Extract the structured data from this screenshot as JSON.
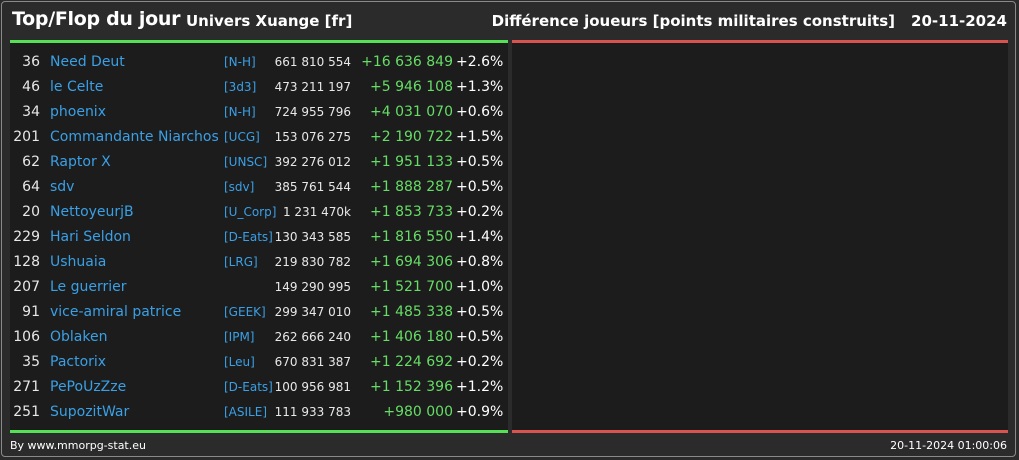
{
  "header": {
    "title": "Top/Flop du jour",
    "subtitle": "Univers Xuange [fr]",
    "metric": "Différence joueurs [points militaires construits]",
    "date": "20-11-2024"
  },
  "colors": {
    "top_accent": "#55e055",
    "flop_accent": "#d9534f",
    "link": "#3aa0e6",
    "gain": "#66dd66"
  },
  "top": [
    {
      "rank": "36",
      "name": "Need Deut",
      "alliance": "[N-H]",
      "points": "661 810 554",
      "diff": "+16 636 849",
      "pct": "+2.6%"
    },
    {
      "rank": "46",
      "name": "le Celte",
      "alliance": "[3d3]",
      "points": "473 211 197",
      "diff": "+5 946 108",
      "pct": "+1.3%"
    },
    {
      "rank": "34",
      "name": "phoenix",
      "alliance": "[N-H]",
      "points": "724 955 796",
      "diff": "+4 031 070",
      "pct": "+0.6%"
    },
    {
      "rank": "201",
      "name": "Commandante Niarchos",
      "alliance": "[UCG]",
      "points": "153 076 275",
      "diff": "+2 190 722",
      "pct": "+1.5%"
    },
    {
      "rank": "62",
      "name": "Raptor X",
      "alliance": "[UNSC]",
      "points": "392 276 012",
      "diff": "+1 951 133",
      "pct": "+0.5%"
    },
    {
      "rank": "64",
      "name": "sdv",
      "alliance": "[sdv]",
      "points": "385 761 544",
      "diff": "+1 888 287",
      "pct": "+0.5%"
    },
    {
      "rank": "20",
      "name": "NettoyeurjB",
      "alliance": "[U_Corp]",
      "points": "1 231 470k",
      "diff": "+1 853 733",
      "pct": "+0.2%"
    },
    {
      "rank": "229",
      "name": "Hari Seldon",
      "alliance": "[D-Eats]",
      "points": "130 343 585",
      "diff": "+1 816 550",
      "pct": "+1.4%"
    },
    {
      "rank": "128",
      "name": "Ushuaia",
      "alliance": "[LRG]",
      "points": "219 830 782",
      "diff": "+1 694 306",
      "pct": "+0.8%"
    },
    {
      "rank": "207",
      "name": "Le guerrier",
      "alliance": "",
      "points": "149 290 995",
      "diff": "+1 521 700",
      "pct": "+1.0%"
    },
    {
      "rank": "91",
      "name": "vice-amiral patrice",
      "alliance": "[GEEK]",
      "points": "299 347 010",
      "diff": "+1 485 338",
      "pct": "+0.5%"
    },
    {
      "rank": "106",
      "name": "Oblaken",
      "alliance": "[IPM]",
      "points": "262 666 240",
      "diff": "+1 406 180",
      "pct": "+0.5%"
    },
    {
      "rank": "35",
      "name": "Pactorix",
      "alliance": "[Leu]",
      "points": "670 831 387",
      "diff": "+1 224 692",
      "pct": "+0.2%"
    },
    {
      "rank": "271",
      "name": "PePoUzZze",
      "alliance": "[D-Eats]",
      "points": "100 956 981",
      "diff": "+1 152 396",
      "pct": "+1.2%"
    },
    {
      "rank": "251",
      "name": "SupozitWar",
      "alliance": "[ASILE]",
      "points": "111 933 783",
      "diff": "+980 000",
      "pct": "+0.9%"
    }
  ],
  "footer": {
    "credit": "By www.mmorpg-stat.eu",
    "timestamp": "20-11-2024 01:00:06"
  }
}
